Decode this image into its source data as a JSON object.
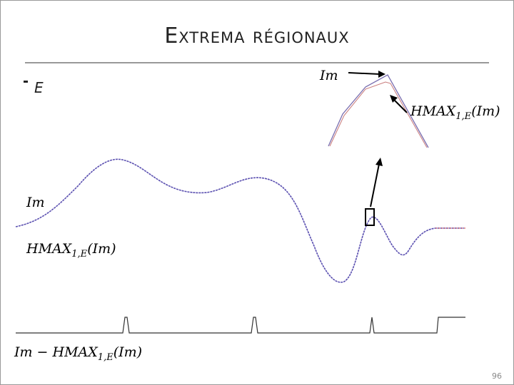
{
  "header": {
    "title": "Extrema régionaux"
  },
  "bullets": [
    "E"
  ],
  "inset": {
    "top_label": "Im",
    "bottom_label": {
      "main": "HMAX",
      "sub": "1,E",
      "rest": "(Im)"
    }
  },
  "labels": {
    "signal": "Im",
    "hmax": {
      "main": "HMAX",
      "sub": "1,E",
      "rest": "(Im)"
    },
    "difference": {
      "main": "Im − HMAX",
      "sub": "1,E",
      "rest": "(Im)"
    }
  },
  "page_number": "96"
}
